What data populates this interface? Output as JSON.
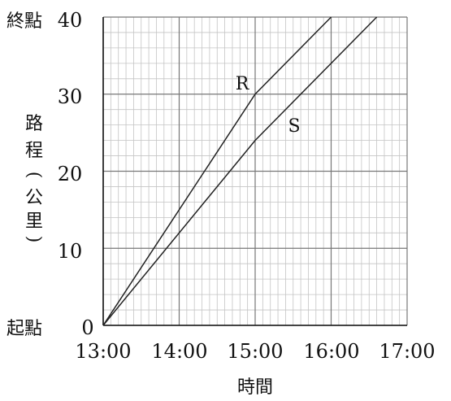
{
  "chart_data": {
    "type": "line",
    "xlabel": "時間",
    "ylabel_chars": [
      "路",
      "程",
      "(",
      "公",
      "里",
      ")"
    ],
    "x_ticks": [
      "13:00",
      "14:00",
      "15:00",
      "16:00",
      "17:00"
    ],
    "y_ticks": [
      "0",
      "10",
      "20",
      "30",
      "40"
    ],
    "y_top_label": "終點",
    "y_bottom_label": "起點",
    "xlim": [
      "13:00",
      "17:00"
    ],
    "ylim": [
      0,
      40
    ],
    "grid": true,
    "series": [
      {
        "name": "R",
        "color": "#222222",
        "points": [
          [
            "13:00",
            0
          ],
          [
            "15:00",
            30
          ],
          [
            "16:00",
            40
          ]
        ]
      },
      {
        "name": "S",
        "color": "#222222",
        "points": [
          [
            "13:00",
            0
          ],
          [
            "15:00",
            24
          ],
          [
            "16:36",
            40
          ]
        ]
      }
    ]
  }
}
